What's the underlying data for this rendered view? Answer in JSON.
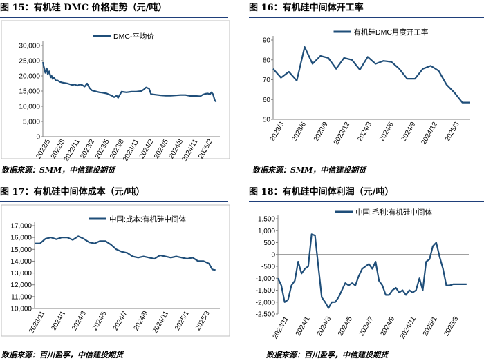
{
  "colors": {
    "line": "#1f4e79",
    "header_rule": "#1f3f7a",
    "grid": "#d9d9d9",
    "axis": "#808080"
  },
  "panels": [
    {
      "title": "图 15：有机硅 DMC 价格走势（元/吨）",
      "source": "数据来源：SMM，中信建投期货"
    },
    {
      "title": "图 16：有机硅中间体开工率",
      "source": "数据来源：SMM，中信建投期货"
    },
    {
      "title": "图 17：有机硅中间体成本（元/吨）",
      "source": "数据来源：百川盈孚，中信建投期货"
    },
    {
      "title": "图 18：有机硅中间体利润（元/吨）",
      "source": "数据来源：百川盈孚，中信建投期货"
    }
  ],
  "chart_data": [
    {
      "type": "line",
      "legend": "DMC-平均价",
      "legend_position": "top-center",
      "grid": false,
      "ylim": [
        0,
        30000
      ],
      "yticks": [
        "0",
        "5,000",
        "10,000",
        "15,000",
        "20,000",
        "25,000",
        "30,000"
      ],
      "xlim": [
        0,
        36
      ],
      "xticks": [
        "2022/5",
        "2022/8",
        "2022/11",
        "2023/2",
        "2023/5",
        "2023/8",
        "2023/11",
        "2024/2",
        "2024/5",
        "2024/8",
        "2024/11",
        "2025/2"
      ],
      "series": [
        {
          "name": "DMC-平均价",
          "x": [
            0,
            0.2,
            0.5,
            0.8,
            1.0,
            1.3,
            1.6,
            1.8,
            2.0,
            2.3,
            2.6,
            3.0,
            3.5,
            4.0,
            5.0,
            6.0,
            6.5,
            7.0,
            7.5,
            8.0,
            8.5,
            9.0,
            9.5,
            10.0,
            10.5,
            11.0,
            11.5,
            12.0,
            13.0,
            14.0,
            14.5,
            15.0,
            15.3,
            16.0,
            17.0,
            18.0,
            19.0,
            20.0,
            20.5,
            21.0,
            21.3,
            21.6,
            22.0,
            23.0,
            24.0,
            25.0,
            26.0,
            27.0,
            28.0,
            29.0,
            30.0,
            31.0,
            32.0,
            32.5,
            33.0,
            33.5,
            34.0,
            34.3,
            34.6,
            35.0,
            35.3
          ],
          "y": [
            24500,
            23000,
            21000,
            22500,
            20500,
            21500,
            19500,
            20000,
            19000,
            19500,
            18500,
            18500,
            18000,
            17800,
            17500,
            17000,
            17200,
            16800,
            17200,
            17000,
            16500,
            17500,
            16000,
            15200,
            15000,
            14800,
            14600,
            14500,
            14200,
            13500,
            13000,
            13500,
            12800,
            14800,
            14600,
            14800,
            14800,
            15000,
            15500,
            16200,
            16000,
            15800,
            14000,
            13800,
            13600,
            13500,
            13500,
            13600,
            13700,
            13700,
            13400,
            13400,
            13300,
            13800,
            14100,
            14200,
            14000,
            14600,
            14000,
            11800,
            11500
          ]
        }
      ]
    },
    {
      "type": "line",
      "legend": "有机硅DMC月度开工率",
      "legend_position": "top-center",
      "grid": false,
      "ylim": [
        50,
        90
      ],
      "yticks": [
        "50",
        "60",
        "70",
        "80",
        "90"
      ],
      "xlim": [
        0,
        25
      ],
      "xticks": [
        "2023/3",
        "2023/6",
        "2023/9",
        "2023/12",
        "2024/3",
        "2024/6",
        "2024/9",
        "2024/12",
        "2025/3"
      ],
      "series": [
        {
          "name": "有机硅DMC月度开工率",
          "x": [
            0,
            1,
            2,
            3,
            4,
            5,
            6,
            7,
            8,
            9,
            10,
            11,
            12,
            13,
            14,
            15,
            16,
            17,
            18,
            19,
            20,
            21,
            22,
            23,
            24,
            25
          ],
          "y": [
            75.5,
            71,
            74,
            69.5,
            86.5,
            78,
            82,
            81,
            75.5,
            81,
            80,
            75,
            81.5,
            78,
            79.5,
            79,
            75.5,
            70.5,
            70.5,
            75.5,
            77,
            74.5,
            67.5,
            63.5,
            58.5,
            58.5
          ]
        }
      ]
    },
    {
      "type": "line",
      "legend": "中国:成本:有机硅中间体",
      "legend_position": "top-center",
      "grid": false,
      "ylim": [
        10000,
        17000
      ],
      "yticks": [
        "10,000",
        "11,000",
        "12,000",
        "13,000",
        "14,000",
        "15,000",
        "16,000",
        "17,000"
      ],
      "xlim": [
        0,
        17
      ],
      "xticks": [
        "2023/11",
        "2024/1",
        "2024/3",
        "2024/5",
        "2024/7",
        "2024/9",
        "2024/11",
        "2025/1",
        "2025/3"
      ],
      "series": [
        {
          "name": "中国:成本:有机硅中间体",
          "x": [
            0,
            0.5,
            1,
            1.5,
            2,
            2.5,
            3,
            3.5,
            4,
            4.5,
            5,
            5.5,
            6,
            6.5,
            7,
            7.5,
            8,
            8.5,
            9,
            9.5,
            10,
            10.5,
            11,
            11.5,
            12,
            12.5,
            13,
            13.5,
            14,
            14.5,
            15,
            15.5,
            16,
            16.3,
            16.6
          ],
          "y": [
            15500,
            15500,
            15900,
            16000,
            15850,
            16000,
            16000,
            15800,
            16100,
            15900,
            15600,
            15500,
            15700,
            15700,
            15400,
            15000,
            14800,
            14700,
            14400,
            14300,
            14400,
            14300,
            14200,
            14500,
            14400,
            14300,
            14400,
            14300,
            14200,
            14300,
            14000,
            14000,
            13800,
            13300,
            13250
          ]
        }
      ]
    },
    {
      "type": "line",
      "legend": "中国:毛利:有机硅中间体",
      "legend_position": "top-center",
      "grid": false,
      "ylim": [
        -2500,
        1500
      ],
      "yticks": [
        "-2,500",
        "-2,000",
        "-1,500",
        "-1,000",
        "-500",
        "0",
        "500",
        "1,000",
        "1,500"
      ],
      "xlim": [
        0,
        17
      ],
      "xticks": [
        "2023/11",
        "2024/1",
        "2024/3",
        "2024/5",
        "2024/7",
        "2024/9",
        "2024/11",
        "2025/1",
        "2025/3"
      ],
      "series": [
        {
          "name": "中国:毛利:有机硅中间体",
          "x": [
            0,
            0.3,
            0.6,
            0.9,
            1.2,
            1.5,
            1.8,
            2.1,
            2.4,
            2.7,
            3.0,
            3.3,
            3.6,
            3.9,
            4.2,
            4.5,
            4.8,
            5.1,
            5.4,
            5.7,
            6.0,
            6.3,
            6.6,
            6.9,
            7.2,
            7.5,
            7.8,
            8.1,
            8.4,
            8.7,
            9.0,
            9.3,
            9.6,
            9.9,
            10.2,
            10.5,
            10.8,
            11.1,
            11.4,
            11.7,
            12.0,
            12.3,
            12.6,
            12.9,
            13.2,
            13.5,
            13.8,
            14.1,
            14.4,
            14.7,
            15.0,
            15.3,
            15.6,
            15.9,
            16.2,
            16.5,
            16.8
          ],
          "y": [
            -1000,
            -1300,
            -2000,
            -1900,
            -1300,
            -1100,
            -300,
            -800,
            -600,
            -500,
            850,
            800,
            -500,
            -1800,
            -2000,
            -2250,
            -2000,
            -2000,
            -1800,
            -1500,
            -1200,
            -1300,
            -1200,
            -1300,
            -900,
            -600,
            -500,
            -400,
            -600,
            -300,
            -1100,
            -1300,
            -1700,
            -1700,
            -1500,
            -1400,
            -1600,
            -1500,
            -1700,
            -1500,
            -1600,
            -1500,
            -1000,
            -1500,
            -300,
            -200,
            350,
            500,
            -100,
            -600,
            -1300,
            -1300,
            -1250,
            -1250,
            -1250,
            -1250,
            -1250
          ]
        }
      ]
    }
  ]
}
